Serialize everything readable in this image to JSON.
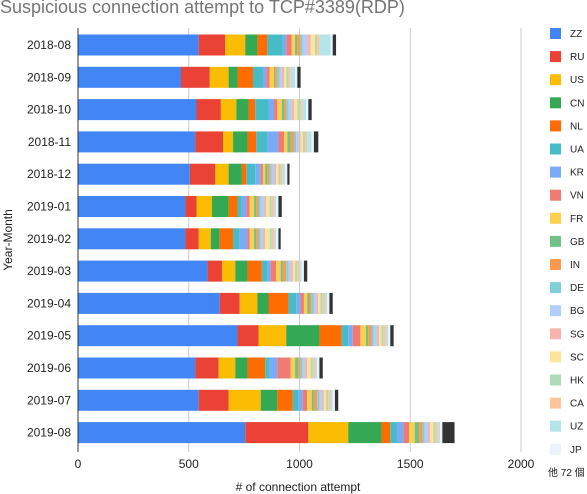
{
  "chart_data": {
    "type": "bar",
    "orientation": "horizontal",
    "stacked": true,
    "title": "Suspicious connection attempt to TCP#3389(RDP)",
    "xlabel": "# of connection attempt",
    "ylabel": "Year-Month",
    "xlim": [
      0,
      2000
    ],
    "xticks": [
      "0",
      "500",
      "1000",
      "1500",
      "2000"
    ],
    "grid": "vertical",
    "legend_position": "right",
    "categories": [
      "2018-08",
      "2018-09",
      "2018-10",
      "2018-11",
      "2018-12",
      "2019-01",
      "2019-02",
      "2019-03",
      "2019-04",
      "2019-05",
      "2019-06",
      "2019-07",
      "2019-08"
    ],
    "series": [
      {
        "name": "ZZ",
        "color": "#4285f4",
        "values": [
          545,
          465,
          535,
          530,
          505,
          485,
          485,
          585,
          640,
          720,
          530,
          545,
          755
        ]
      },
      {
        "name": "RU",
        "color": "#ea4335",
        "values": [
          120,
          130,
          110,
          125,
          115,
          50,
          60,
          65,
          90,
          95,
          105,
          135,
          285
        ]
      },
      {
        "name": "US",
        "color": "#fbbc04",
        "values": [
          90,
          85,
          70,
          45,
          60,
          70,
          55,
          60,
          80,
          125,
          75,
          145,
          180
        ]
      },
      {
        "name": "CN",
        "color": "#34a853",
        "values": [
          55,
          40,
          55,
          65,
          60,
          75,
          40,
          55,
          50,
          150,
          55,
          75,
          150
        ]
      },
      {
        "name": "NL",
        "color": "#ff6d01",
        "values": [
          45,
          70,
          30,
          40,
          20,
          40,
          60,
          65,
          90,
          100,
          80,
          70,
          40
        ]
      },
      {
        "name": "UA",
        "color": "#46bdc6",
        "values": [
          70,
          45,
          60,
          50,
          40,
          20,
          30,
          25,
          35,
          30,
          20,
          25,
          30
        ]
      },
      {
        "name": "KR",
        "color": "#7baaf7",
        "values": [
          15,
          15,
          25,
          50,
          25,
          20,
          35,
          15,
          20,
          20,
          35,
          20,
          30
        ]
      },
      {
        "name": "VN",
        "color": "#f07b72",
        "values": [
          25,
          15,
          15,
          25,
          10,
          15,
          10,
          25,
          15,
          35,
          60,
          20,
          25
        ]
      },
      {
        "name": "FR",
        "color": "#fcd04f",
        "values": [
          15,
          20,
          20,
          15,
          10,
          20,
          20,
          20,
          15,
          25,
          20,
          20,
          25
        ]
      },
      {
        "name": "GB",
        "color": "#71c287",
        "values": [
          10,
          5,
          10,
          15,
          10,
          10,
          10,
          10,
          10,
          10,
          15,
          10,
          20
        ]
      },
      {
        "name": "IN",
        "color": "#ff994d",
        "values": [
          15,
          10,
          10,
          15,
          10,
          10,
          10,
          15,
          10,
          15,
          10,
          15,
          15
        ]
      },
      {
        "name": "DE",
        "color": "#7ed1d7",
        "values": [
          10,
          10,
          10,
          10,
          10,
          10,
          10,
          10,
          10,
          10,
          10,
          10,
          10
        ]
      },
      {
        "name": "BG",
        "color": "#b3cefb",
        "values": [
          20,
          10,
          15,
          10,
          10,
          15,
          10,
          10,
          10,
          15,
          10,
          10,
          15
        ]
      },
      {
        "name": "SG",
        "color": "#f7b4ae",
        "values": [
          15,
          10,
          10,
          10,
          10,
          10,
          10,
          10,
          10,
          10,
          10,
          10,
          10
        ]
      },
      {
        "name": "SC",
        "color": "#fde49b",
        "values": [
          20,
          10,
          15,
          10,
          10,
          15,
          20,
          10,
          10,
          10,
          15,
          10,
          15
        ]
      },
      {
        "name": "HK",
        "color": "#aedcba",
        "values": [
          10,
          10,
          10,
          10,
          10,
          10,
          10,
          10,
          10,
          10,
          10,
          10,
          10
        ]
      },
      {
        "name": "CA",
        "color": "#ffc599",
        "values": [
          10,
          10,
          10,
          10,
          10,
          10,
          10,
          10,
          10,
          10,
          10,
          10,
          10
        ]
      },
      {
        "name": "UZ",
        "color": "#b5e5e8",
        "values": [
          50,
          20,
          20,
          20,
          10,
          10,
          10,
          10,
          10,
          10,
          10,
          10,
          10
        ]
      },
      {
        "name": "JP",
        "color": "#ecf3fe",
        "values": [
          10,
          10,
          10,
          10,
          10,
          10,
          10,
          10,
          10,
          10,
          10,
          10,
          10
        ]
      },
      {
        "name": "他 72 個",
        "color": "#333333",
        "values": [
          15,
          15,
          15,
          20,
          10,
          15,
          10,
          15,
          15,
          15,
          15,
          15,
          55
        ]
      }
    ]
  }
}
